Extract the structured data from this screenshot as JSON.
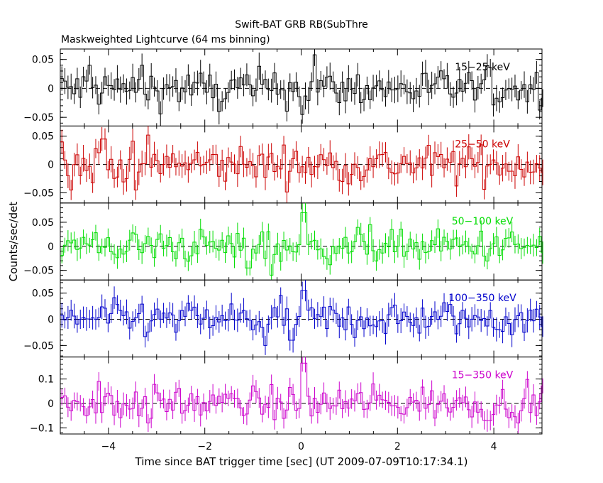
{
  "chart_data": {
    "type": "line",
    "title": "Swift-BAT GRB RB(SubThre",
    "subtitle": "Maskweighted Lightcurve (64 ms binning)",
    "xlabel": "Time since BAT trigger time [sec] (UT 2009-07-09T10:17:34.1)",
    "ylabel": "Counts/sec/det",
    "xlim": [
      -5,
      5
    ],
    "x_ticks": [
      -4,
      -2,
      0,
      2,
      4
    ],
    "x_tick_labels": [
      "−4",
      "−2",
      "0",
      "2",
      "4"
    ],
    "bin_width_sec": 0.064,
    "panels": [
      {
        "name": "15−25 keV",
        "color": "#000000",
        "ylim": [
          -0.065,
          0.068
        ],
        "y_ticks": [
          -0.05,
          0,
          0.05
        ],
        "y_tick_labels": [
          "−0.05",
          "0",
          "0.05"
        ],
        "peaks": [
          {
            "t": 0.29,
            "v": 0.058
          },
          {
            "t": -4.38,
            "v": 0.04
          },
          {
            "t": -3.3,
            "v": 0.04
          }
        ],
        "dips": [
          {
            "t": -1.7,
            "v": -0.04
          },
          {
            "t": 0.03,
            "v": -0.045
          }
        ]
      },
      {
        "name": "25−50 keV",
        "color": "#cc0000",
        "ylim": [
          -0.068,
          0.068
        ],
        "y_ticks": [
          -0.05,
          0,
          0.05
        ],
        "y_tick_labels": [
          "−0.05",
          "0",
          "0.05"
        ],
        "peaks": [
          {
            "t": -3.2,
            "v": 0.052
          },
          {
            "t": -4.95,
            "v": 0.04
          },
          {
            "t": -4.1,
            "v": 0.045
          }
        ],
        "dips": [
          {
            "t": -4.8,
            "v": -0.045
          },
          {
            "t": -3.45,
            "v": -0.045
          }
        ]
      },
      {
        "name": "50−100 keV",
        "color": "#00dd00",
        "ylim": [
          -0.07,
          0.09
        ],
        "y_ticks": [
          -0.05,
          0,
          0.05
        ],
        "y_tick_labels": [
          "−0.05",
          "0",
          "0.05"
        ],
        "peaks": [
          {
            "t": 0.05,
            "v": 0.07
          },
          {
            "t": 1.45,
            "v": 0.045
          },
          {
            "t": -0.8,
            "v": 0.03
          }
        ],
        "dips": [
          {
            "t": -0.6,
            "v": -0.06
          },
          {
            "t": -1.1,
            "v": -0.045
          }
        ]
      },
      {
        "name": "100−350 keV",
        "color": "#0000cc",
        "ylim": [
          -0.072,
          0.075
        ],
        "y_ticks": [
          -0.05,
          0,
          0.05
        ],
        "y_tick_labels": [
          "−0.05",
          "0",
          "0.05"
        ],
        "peaks": [
          {
            "t": 0.05,
            "v": 0.055
          },
          {
            "t": -0.3,
            "v": 0.02
          }
        ],
        "dips": [
          {
            "t": -0.75,
            "v": -0.05
          },
          {
            "t": -0.2,
            "v": -0.04
          }
        ]
      },
      {
        "name": "15−350 keV",
        "color": "#cc00cc",
        "ylim": [
          -0.125,
          0.19
        ],
        "y_ticks": [
          -0.1,
          0,
          0.1
        ],
        "y_tick_labels": [
          "−0.1",
          "0",
          "0.1"
        ],
        "peaks": [
          {
            "t": 0.05,
            "v": 0.165
          },
          {
            "t": -4.2,
            "v": 0.09
          },
          {
            "t": 1.5,
            "v": 0.08
          }
        ],
        "dips": [
          {
            "t": -3.2,
            "v": -0.08
          },
          {
            "t": 3.9,
            "v": -0.07
          }
        ]
      }
    ]
  }
}
